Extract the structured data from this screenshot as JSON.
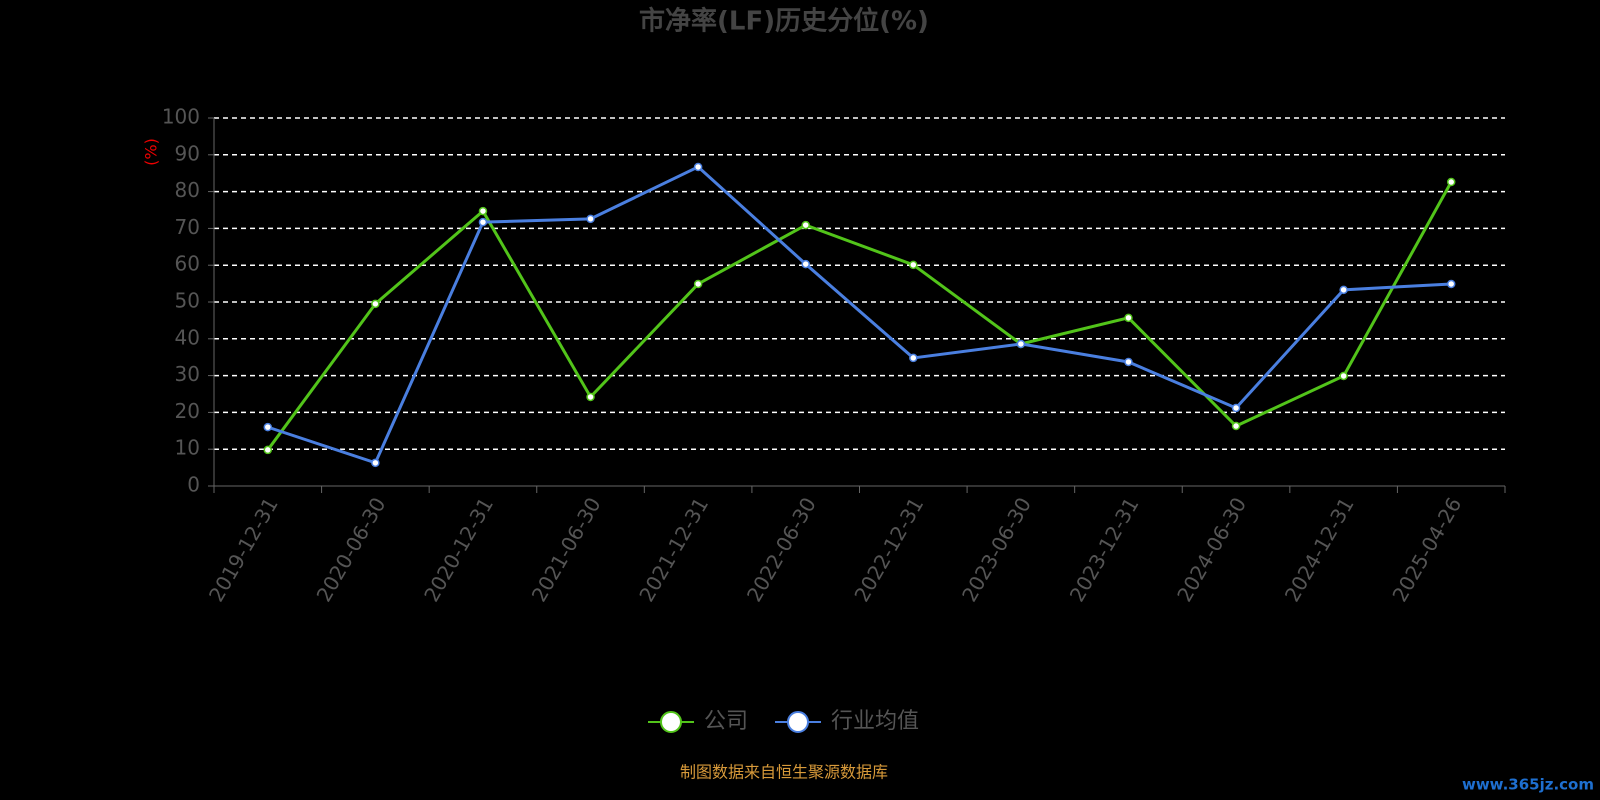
{
  "chart_data": {
    "type": "line",
    "title": "市净率(LF)历史分位(%)",
    "y_label": "(%)",
    "categories": [
      "2019-12-31",
      "2020-06-30",
      "2020-12-31",
      "2021-06-30",
      "2021-12-31",
      "2022-06-30",
      "2022-12-31",
      "2023-06-30",
      "2023-12-31",
      "2024-06-30",
      "2024-12-31",
      "2025-04-26"
    ],
    "series": [
      {
        "name": "公司",
        "color": "#52c41a",
        "values": [
          9.8,
          49.5,
          74.7,
          24.2,
          54.9,
          70.9,
          60.1,
          38.6,
          45.7,
          16.3,
          29.9,
          82.6
        ]
      },
      {
        "name": "行业均值",
        "color": "#4a7fe0",
        "values": [
          16.0,
          6.3,
          71.7,
          72.6,
          86.7,
          60.3,
          34.8,
          38.6,
          33.7,
          21.2,
          53.3,
          54.9
        ]
      }
    ],
    "ylim": [
      0,
      100
    ],
    "yticks": [
      0,
      10,
      20,
      30,
      40,
      50,
      60,
      70,
      80,
      90,
      100
    ],
    "grid": true,
    "legend": "bottom",
    "source": "制图数据来自恒生聚源数据库",
    "watermark": "www.365jz.com"
  }
}
